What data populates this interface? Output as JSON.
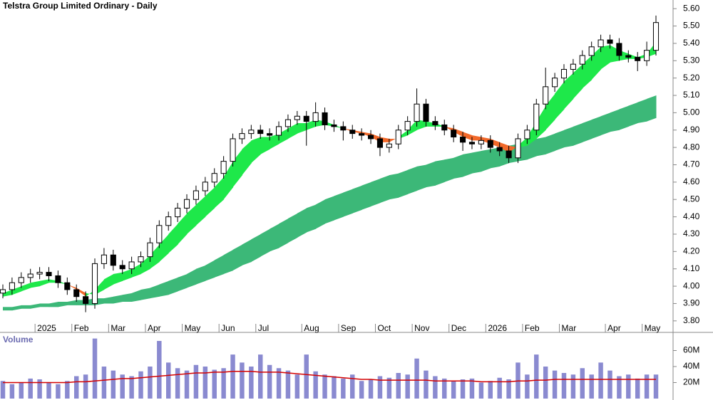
{
  "chart_data": [
    {
      "type": "candlestick",
      "title": "Telstra Group Limited Ordinary - Daily",
      "categories": [
        null,
        null,
        null,
        null,
        "2025",
        null,
        null,
        null,
        "Feb",
        null,
        null,
        null,
        "Mar",
        null,
        null,
        null,
        "Apr",
        null,
        null,
        null,
        "May",
        null,
        null,
        null,
        "Jun",
        null,
        null,
        null,
        "Jul",
        null,
        null,
        null,
        null,
        "Aug",
        null,
        null,
        null,
        "Sep",
        null,
        null,
        null,
        "Oct",
        null,
        null,
        null,
        "Nov",
        null,
        null,
        null,
        "Dec",
        null,
        null,
        null,
        "2026",
        null,
        null,
        null,
        "Feb",
        null,
        null,
        null,
        "Mar",
        null,
        null,
        null,
        null,
        "Apr",
        null,
        null,
        null,
        "May",
        null
      ],
      "open": [
        3.96,
        3.98,
        4.02,
        4.05,
        4.07,
        4.08,
        4.06,
        4.02,
        3.98,
        3.94,
        3.9,
        4.13,
        4.18,
        4.12,
        4.1,
        4.14,
        4.17,
        4.25,
        4.35,
        4.4,
        4.45,
        4.5,
        4.55,
        4.6,
        4.65,
        4.72,
        4.85,
        4.88,
        4.9,
        4.88,
        4.87,
        4.92,
        4.96,
        4.98,
        4.95,
        5.0,
        4.93,
        4.92,
        4.9,
        4.88,
        4.87,
        4.85,
        4.8,
        4.82,
        4.9,
        4.95,
        5.05,
        4.95,
        4.93,
        4.9,
        4.86,
        4.83,
        4.82,
        4.84,
        4.8,
        4.78,
        4.74,
        4.85,
        4.9,
        5.05,
        5.15,
        5.2,
        5.25,
        5.28,
        5.33,
        5.38,
        5.42,
        5.4,
        5.33,
        5.32,
        5.3,
        5.36
      ],
      "high": [
        4.01,
        4.05,
        4.08,
        4.1,
        4.11,
        4.11,
        4.09,
        4.05,
        4.01,
        3.97,
        4.16,
        4.22,
        4.21,
        4.15,
        4.17,
        4.2,
        4.28,
        4.38,
        4.43,
        4.48,
        4.53,
        4.58,
        4.63,
        4.68,
        4.75,
        4.88,
        4.91,
        4.93,
        4.93,
        4.91,
        4.95,
        4.99,
        5.01,
        5.01,
        5.06,
        5.03,
        4.96,
        4.95,
        4.93,
        4.91,
        4.9,
        4.88,
        4.85,
        4.93,
        4.98,
        5.14,
        5.08,
        4.98,
        4.96,
        4.93,
        4.89,
        4.86,
        4.87,
        4.87,
        4.83,
        4.81,
        4.88,
        4.93,
        5.08,
        5.26,
        5.23,
        5.28,
        5.31,
        5.36,
        5.41,
        5.45,
        5.45,
        5.43,
        5.36,
        5.35,
        5.41,
        5.56
      ],
      "low": [
        3.93,
        3.95,
        3.99,
        4.02,
        4.04,
        4.03,
        3.99,
        3.95,
        3.91,
        3.85,
        3.87,
        4.1,
        4.09,
        4.07,
        4.07,
        4.11,
        4.14,
        4.22,
        4.32,
        4.37,
        4.42,
        4.47,
        4.52,
        4.57,
        4.62,
        4.69,
        4.82,
        4.85,
        4.85,
        4.84,
        4.84,
        4.89,
        4.93,
        4.81,
        4.92,
        4.9,
        4.89,
        4.84,
        4.85,
        4.84,
        4.82,
        4.75,
        4.77,
        4.79,
        4.87,
        4.92,
        4.92,
        4.9,
        4.87,
        4.83,
        4.78,
        4.79,
        4.79,
        4.77,
        4.75,
        4.71,
        4.71,
        4.82,
        4.87,
        5.02,
        5.12,
        5.17,
        5.22,
        5.25,
        5.3,
        5.35,
        5.37,
        5.3,
        5.29,
        5.24,
        5.27,
        5.33
      ],
      "close": [
        3.98,
        4.02,
        4.05,
        4.07,
        4.08,
        4.06,
        4.02,
        3.98,
        3.94,
        3.9,
        4.13,
        4.18,
        4.12,
        4.1,
        4.14,
        4.17,
        4.25,
        4.35,
        4.4,
        4.45,
        4.5,
        4.55,
        4.6,
        4.65,
        4.72,
        4.85,
        4.88,
        4.9,
        4.88,
        4.87,
        4.92,
        4.96,
        4.98,
        4.95,
        5.0,
        4.93,
        4.92,
        4.9,
        4.88,
        4.87,
        4.85,
        4.8,
        4.82,
        4.9,
        4.95,
        5.05,
        4.95,
        4.93,
        4.9,
        4.86,
        4.83,
        4.82,
        4.84,
        4.8,
        4.78,
        4.74,
        4.85,
        4.9,
        5.05,
        5.15,
        5.2,
        5.25,
        5.28,
        5.33,
        5.38,
        5.42,
        5.4,
        5.33,
        5.32,
        5.3,
        5.36,
        5.52
      ],
      "short_fast": [
        3.96,
        3.98,
        4.0,
        4.02,
        4.03,
        4.04,
        4.03,
        4.01,
        3.98,
        3.94,
        3.98,
        4.04,
        4.07,
        4.08,
        4.1,
        4.13,
        4.18,
        4.24,
        4.3,
        4.36,
        4.42,
        4.47,
        4.52,
        4.57,
        4.63,
        4.72,
        4.79,
        4.84,
        4.86,
        4.86,
        4.88,
        4.91,
        4.94,
        4.94,
        4.96,
        4.95,
        4.93,
        4.91,
        4.89,
        4.88,
        4.86,
        4.83,
        4.83,
        4.86,
        4.9,
        4.96,
        4.95,
        4.94,
        4.92,
        4.89,
        4.86,
        4.84,
        4.84,
        4.82,
        4.8,
        4.77,
        4.81,
        4.86,
        4.95,
        5.04,
        5.11,
        5.18,
        5.23,
        5.28,
        5.33,
        5.38,
        5.39,
        5.36,
        5.34,
        5.32,
        5.34,
        5.41
      ],
      "short_slow": [
        3.94,
        3.95,
        3.97,
        3.99,
        4.0,
        4.02,
        4.02,
        4.01,
        3.99,
        3.96,
        3.95,
        3.98,
        4.01,
        4.03,
        4.05,
        4.07,
        4.1,
        4.14,
        4.19,
        4.24,
        4.3,
        4.35,
        4.4,
        4.45,
        4.5,
        4.57,
        4.64,
        4.71,
        4.76,
        4.79,
        4.82,
        4.85,
        4.88,
        4.9,
        4.92,
        4.93,
        4.92,
        4.91,
        4.9,
        4.89,
        4.88,
        4.86,
        4.85,
        4.85,
        4.87,
        4.9,
        4.92,
        4.92,
        4.92,
        4.91,
        4.89,
        4.87,
        4.86,
        4.85,
        4.83,
        4.81,
        4.8,
        4.81,
        4.85,
        4.9,
        4.96,
        5.02,
        5.08,
        5.14,
        5.19,
        5.25,
        5.29,
        5.3,
        5.31,
        5.31,
        5.32,
        5.34
      ],
      "long_fast": [
        3.88,
        3.88,
        3.89,
        3.89,
        3.9,
        3.9,
        3.91,
        3.91,
        3.92,
        3.92,
        3.93,
        3.93,
        3.94,
        3.95,
        3.96,
        3.98,
        3.99,
        4.01,
        4.03,
        4.05,
        4.07,
        4.1,
        4.12,
        4.15,
        4.18,
        4.21,
        4.24,
        4.27,
        4.3,
        4.33,
        4.36,
        4.39,
        4.42,
        4.45,
        4.47,
        4.5,
        4.52,
        4.54,
        4.56,
        4.58,
        4.6,
        4.62,
        4.64,
        4.65,
        4.67,
        4.69,
        4.7,
        4.72,
        4.73,
        4.74,
        4.76,
        4.77,
        4.78,
        4.79,
        4.8,
        4.81,
        4.82,
        4.83,
        4.85,
        4.86,
        4.88,
        4.9,
        4.92,
        4.94,
        4.96,
        4.98,
        5.0,
        5.02,
        5.04,
        5.06,
        5.08,
        5.1
      ],
      "long_slow": [
        3.86,
        3.86,
        3.87,
        3.87,
        3.88,
        3.88,
        3.88,
        3.89,
        3.89,
        3.89,
        3.89,
        3.9,
        3.9,
        3.91,
        3.91,
        3.92,
        3.93,
        3.94,
        3.95,
        3.97,
        3.99,
        4.01,
        4.03,
        4.05,
        4.07,
        4.09,
        4.12,
        4.14,
        4.17,
        4.2,
        4.22,
        4.25,
        4.28,
        4.31,
        4.33,
        4.36,
        4.38,
        4.4,
        4.42,
        4.44,
        4.46,
        4.48,
        4.5,
        4.51,
        4.53,
        4.55,
        4.57,
        4.58,
        4.6,
        4.62,
        4.63,
        4.65,
        4.66,
        4.68,
        4.69,
        4.71,
        4.72,
        4.73,
        4.75,
        4.76,
        4.78,
        4.8,
        4.81,
        4.83,
        4.85,
        4.87,
        4.89,
        4.9,
        4.92,
        4.94,
        4.95,
        4.97
      ],
      "up_color": "#1ee84a",
      "down_color": "#f2692a",
      "long_color": "#3cb878",
      "ylim": [
        3.75,
        5.65
      ],
      "yticks": [
        {
          "value": 3.8,
          "label": "3.80"
        },
        {
          "value": 3.9,
          "label": "3.90"
        },
        {
          "value": 4.0,
          "label": "4.00"
        },
        {
          "value": 4.1,
          "label": "4.10"
        },
        {
          "value": 4.2,
          "label": "4.20"
        },
        {
          "value": 4.3,
          "label": "4.30"
        },
        {
          "value": 4.4,
          "label": "4.40"
        },
        {
          "value": 4.5,
          "label": "4.50"
        },
        {
          "value": 4.6,
          "label": "4.60"
        },
        {
          "value": 4.7,
          "label": "4.70"
        },
        {
          "value": 4.8,
          "label": "4.80"
        },
        {
          "value": 4.9,
          "label": "4.90"
        },
        {
          "value": 5.0,
          "label": "5.00"
        },
        {
          "value": 5.1,
          "label": "5.10"
        },
        {
          "value": 5.2,
          "label": "5.20"
        },
        {
          "value": 5.3,
          "label": "5.30"
        },
        {
          "value": 5.4,
          "label": "5.40"
        },
        {
          "value": 5.5,
          "label": "5.50"
        },
        {
          "value": 5.6,
          "label": "5.60"
        }
      ]
    },
    {
      "type": "bar",
      "title": "Volume",
      "values": [
        22,
        18,
        20,
        25,
        24,
        20,
        18,
        22,
        28,
        30,
        75,
        40,
        35,
        30,
        28,
        34,
        40,
        72,
        45,
        38,
        35,
        42,
        40,
        36,
        38,
        55,
        45,
        40,
        55,
        42,
        38,
        35,
        30,
        55,
        34,
        30,
        28,
        25,
        30,
        22,
        24,
        28,
        26,
        32,
        30,
        50,
        35,
        28,
        25,
        22,
        24,
        25,
        20,
        22,
        26,
        24,
        45,
        30,
        55,
        40,
        35,
        32,
        30,
        38,
        30,
        45,
        35,
        28,
        30,
        25,
        30,
        30
      ],
      "ma": [
        20,
        20,
        20,
        20,
        20,
        20,
        20,
        20,
        21,
        21,
        22,
        23,
        24,
        25,
        25,
        26,
        27,
        28,
        29,
        30,
        31,
        32,
        32,
        33,
        33,
        34,
        34,
        34,
        33,
        33,
        33,
        32,
        31,
        30,
        29,
        28,
        27,
        26,
        25,
        24,
        24,
        23,
        23,
        23,
        23,
        23,
        23,
        22,
        22,
        22,
        22,
        22,
        21,
        21,
        21,
        21,
        22,
        22,
        23,
        23,
        24,
        24,
        24,
        24,
        24,
        24,
        24,
        24,
        24,
        24,
        24,
        24
      ],
      "color": "#8a8ad0",
      "ma_color": "#d40000",
      "ylim": [
        0,
        80
      ],
      "yticks": [
        {
          "value": 20,
          "label": "20M"
        },
        {
          "value": 40,
          "label": "40M"
        },
        {
          "value": 60,
          "label": "60M"
        }
      ]
    }
  ]
}
